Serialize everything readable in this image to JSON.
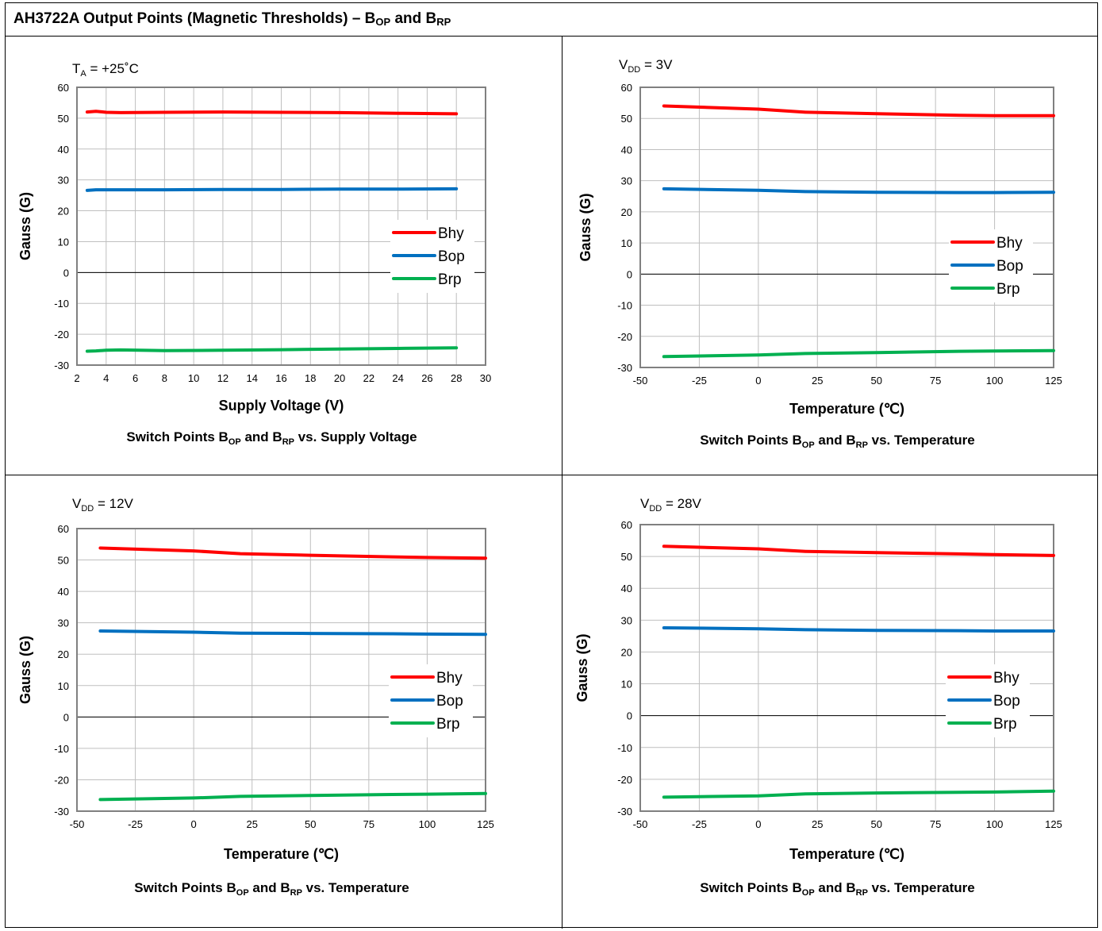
{
  "title": {
    "main": "AH3722A Output Points (Magnetic Thresholds) – B",
    "sub1": "OP",
    "mid": " and B",
    "sub2": "RP"
  },
  "colors": {
    "bhy": "#ff0000",
    "bop": "#0070c0",
    "brp": "#00b050",
    "grid": "#bfbfbf",
    "frame": "#808080"
  },
  "chart_data": [
    {
      "type": "line",
      "condition": {
        "pre": "T",
        "sub": "A",
        "post": " = +25˚C"
      },
      "xlabel": "Supply Voltage (V)",
      "ylabel": "Gauss (G)",
      "caption": {
        "a": "Switch Points B",
        "s1": "OP",
        "b": " and B",
        "s2": "RP",
        "c": " vs. Supply Voltage"
      },
      "xlim": [
        2,
        30
      ],
      "xticks": [
        2,
        4,
        6,
        8,
        10,
        12,
        14,
        16,
        18,
        20,
        22,
        24,
        26,
        28,
        30
      ],
      "ylim": [
        -30,
        60
      ],
      "yticks": [
        -30,
        -20,
        -10,
        0,
        10,
        20,
        30,
        40,
        50,
        60
      ],
      "grid": true,
      "legend": "right",
      "series": [
        {
          "name": "Bhy",
          "color": "#ff0000",
          "points": [
            [
              2.7,
              52.0
            ],
            [
              3.3,
              52.2
            ],
            [
              3.6,
              52.1
            ],
            [
              4,
              51.9
            ],
            [
              5,
              51.8
            ],
            [
              8,
              51.9
            ],
            [
              12,
              52.0
            ],
            [
              16,
              51.9
            ],
            [
              20,
              51.8
            ],
            [
              24,
              51.6
            ],
            [
              28,
              51.4
            ]
          ]
        },
        {
          "name": "Bop",
          "color": "#0070c0",
          "points": [
            [
              2.7,
              26.6
            ],
            [
              3.3,
              26.8
            ],
            [
              4,
              26.8
            ],
            [
              8,
              26.8
            ],
            [
              12,
              26.9
            ],
            [
              16,
              26.9
            ],
            [
              20,
              27.0
            ],
            [
              24,
              27.0
            ],
            [
              28,
              27.1
            ]
          ]
        },
        {
          "name": "Brp",
          "color": "#00b050",
          "points": [
            [
              2.7,
              -25.5
            ],
            [
              3.3,
              -25.4
            ],
            [
              4,
              -25.2
            ],
            [
              5,
              -25.1
            ],
            [
              8,
              -25.3
            ],
            [
              12,
              -25.2
            ],
            [
              16,
              -25.0
            ],
            [
              20,
              -24.8
            ],
            [
              24,
              -24.6
            ],
            [
              28,
              -24.4
            ]
          ]
        }
      ]
    },
    {
      "type": "line",
      "condition": {
        "pre": "V",
        "sub": "DD",
        "post": " = 3V"
      },
      "xlabel": "Temperature (℃)",
      "ylabel": "Gauss (G)",
      "caption": {
        "a": "Switch Points B",
        "s1": "OP",
        "b": " and B",
        "s2": "RP",
        "c": " vs. Temperature"
      },
      "xlim": [
        -50,
        125
      ],
      "xticks": [
        -50,
        -25,
        0,
        25,
        50,
        75,
        100,
        125
      ],
      "ylim": [
        -30,
        60
      ],
      "yticks": [
        -30,
        -20,
        -10,
        0,
        10,
        20,
        30,
        40,
        50,
        60
      ],
      "grid": true,
      "legend": "right",
      "series": [
        {
          "name": "Bhy",
          "color": "#ff0000",
          "points": [
            [
              -40,
              54.0
            ],
            [
              0,
              53.0
            ],
            [
              20,
              52.0
            ],
            [
              50,
              51.5
            ],
            [
              85,
              51.0
            ],
            [
              100,
              50.9
            ],
            [
              125,
              50.9
            ]
          ]
        },
        {
          "name": "Bop",
          "color": "#0070c0",
          "points": [
            [
              -40,
              27.4
            ],
            [
              0,
              26.9
            ],
            [
              20,
              26.5
            ],
            [
              50,
              26.3
            ],
            [
              85,
              26.2
            ],
            [
              100,
              26.2
            ],
            [
              125,
              26.3
            ]
          ]
        },
        {
          "name": "Brp",
          "color": "#00b050",
          "points": [
            [
              -40,
              -26.5
            ],
            [
              0,
              -26.0
            ],
            [
              20,
              -25.5
            ],
            [
              50,
              -25.2
            ],
            [
              85,
              -24.8
            ],
            [
              100,
              -24.7
            ],
            [
              125,
              -24.6
            ]
          ]
        }
      ]
    },
    {
      "type": "line",
      "condition": {
        "pre": "V",
        "sub": "DD",
        "post": " = 12V"
      },
      "xlabel": "Temperature (℃)",
      "ylabel": "Gauss (G)",
      "caption": {
        "a": "Switch Points B",
        "s1": "OP",
        "b": " and B",
        "s2": "RP",
        "c": " vs. Temperature"
      },
      "xlim": [
        -50,
        125
      ],
      "xticks": [
        -50,
        -25,
        0,
        25,
        50,
        75,
        100,
        125
      ],
      "ylim": [
        -30,
        60
      ],
      "yticks": [
        -30,
        -20,
        -10,
        0,
        10,
        20,
        30,
        40,
        50,
        60
      ],
      "grid": true,
      "legend": "right",
      "series": [
        {
          "name": "Bhy",
          "color": "#ff0000",
          "points": [
            [
              -40,
              53.8
            ],
            [
              0,
              52.9
            ],
            [
              20,
              52.0
            ],
            [
              50,
              51.5
            ],
            [
              85,
              51.0
            ],
            [
              100,
              50.8
            ],
            [
              125,
              50.6
            ]
          ]
        },
        {
          "name": "Bop",
          "color": "#0070c0",
          "points": [
            [
              -40,
              27.4
            ],
            [
              0,
              27.0
            ],
            [
              20,
              26.7
            ],
            [
              50,
              26.6
            ],
            [
              85,
              26.5
            ],
            [
              100,
              26.4
            ],
            [
              125,
              26.3
            ]
          ]
        },
        {
          "name": "Brp",
          "color": "#00b050",
          "points": [
            [
              -40,
              -26.3
            ],
            [
              0,
              -25.8
            ],
            [
              20,
              -25.3
            ],
            [
              50,
              -25.0
            ],
            [
              85,
              -24.7
            ],
            [
              100,
              -24.6
            ],
            [
              125,
              -24.4
            ]
          ]
        }
      ]
    },
    {
      "type": "line",
      "condition": {
        "pre": "V",
        "sub": "DD",
        "post": " = 28V"
      },
      "xlabel": "Temperature (℃)",
      "ylabel": "Gauss (G)",
      "caption": {
        "a": "Switch Points B",
        "s1": "OP",
        "b": " and B",
        "s2": "RP",
        "c": " vs. Temperature"
      },
      "xlim": [
        -50,
        125
      ],
      "xticks": [
        -50,
        -25,
        0,
        25,
        50,
        75,
        100,
        125
      ],
      "ylim": [
        -30,
        60
      ],
      "yticks": [
        -30,
        -20,
        -10,
        0,
        10,
        20,
        30,
        40,
        50,
        60
      ],
      "grid": true,
      "legend": "right",
      "series": [
        {
          "name": "Bhy",
          "color": "#ff0000",
          "points": [
            [
              -40,
              53.2
            ],
            [
              0,
              52.4
            ],
            [
              20,
              51.6
            ],
            [
              50,
              51.2
            ],
            [
              85,
              50.8
            ],
            [
              100,
              50.6
            ],
            [
              125,
              50.3
            ]
          ]
        },
        {
          "name": "Bop",
          "color": "#0070c0",
          "points": [
            [
              -40,
              27.6
            ],
            [
              0,
              27.3
            ],
            [
              20,
              27.0
            ],
            [
              50,
              26.8
            ],
            [
              85,
              26.7
            ],
            [
              100,
              26.6
            ],
            [
              125,
              26.6
            ]
          ]
        },
        {
          "name": "Brp",
          "color": "#00b050",
          "points": [
            [
              -40,
              -25.6
            ],
            [
              0,
              -25.2
            ],
            [
              20,
              -24.6
            ],
            [
              50,
              -24.3
            ],
            [
              85,
              -24.1
            ],
            [
              100,
              -24.0
            ],
            [
              125,
              -23.7
            ]
          ]
        }
      ]
    }
  ]
}
